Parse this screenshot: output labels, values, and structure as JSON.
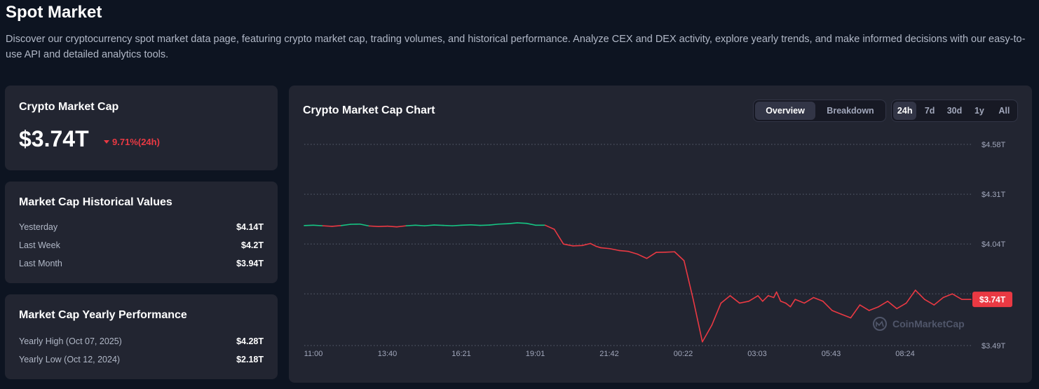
{
  "page": {
    "title": "Spot Market",
    "description": "Discover our cryptocurrency spot market data page, featuring crypto market cap, trading volumes, and historical performance. Analyze CEX and DEX activity, explore yearly trends, and make informed decisions with our easy-to-use API and detailed analytics tools."
  },
  "market_cap": {
    "title": "Crypto Market Cap",
    "value": "$3.74T",
    "change": "9.71%(24h)",
    "change_direction": "down"
  },
  "historical": {
    "title": "Market Cap Historical Values",
    "rows": [
      {
        "label": "Yesterday",
        "value": "$4.14T"
      },
      {
        "label": "Last Week",
        "value": "$4.2T"
      },
      {
        "label": "Last Month",
        "value": "$3.94T"
      }
    ]
  },
  "yearly": {
    "title": "Market Cap Yearly Performance",
    "rows": [
      {
        "label": "Yearly High (Oct 07, 2025)",
        "value": "$4.28T"
      },
      {
        "label": "Yearly Low (Oct 12, 2024)",
        "value": "$2.18T"
      }
    ]
  },
  "chart": {
    "title": "Crypto Market Cap Chart",
    "view_tabs": [
      {
        "label": "Overview",
        "active": true
      },
      {
        "label": "Breakdown",
        "active": false
      }
    ],
    "range_tabs": [
      {
        "label": "24h",
        "active": true
      },
      {
        "label": "7d",
        "active": false
      },
      {
        "label": "30d",
        "active": false
      },
      {
        "label": "1y",
        "active": false
      },
      {
        "label": "All",
        "active": false
      }
    ],
    "current_label": "$3.74T",
    "watermark": "CoinMarketCap",
    "colors": {
      "up": "#16c784",
      "down": "#ea3943",
      "grid": "#5a6070",
      "axis_text": "#a1a7bb"
    }
  },
  "chart_data": {
    "type": "line",
    "x_tick_labels": [
      "11:00",
      "13:40",
      "16:21",
      "19:01",
      "21:42",
      "00:22",
      "03:03",
      "05:43",
      "08:24"
    ],
    "y_tick_labels": [
      "$4.58T",
      "$4.31T",
      "$4.04T",
      "$3.49T"
    ],
    "ylim": [
      3.49,
      4.58
    ],
    "y_ticks": [
      4.58,
      4.31,
      4.04,
      3.77,
      3.49
    ],
    "unit": "T",
    "baseline": 4.14,
    "grid": true,
    "series": [
      {
        "x": [
          0,
          0.33,
          0.67,
          1.0,
          1.33,
          1.67,
          2.0,
          2.33,
          2.67,
          3.0,
          3.33,
          3.67,
          4.0,
          4.33,
          4.67,
          5.0,
          5.33,
          5.67,
          6.0,
          6.33,
          6.67,
          7.0,
          7.33,
          7.67,
          8.0,
          8.33,
          8.67,
          9.0,
          9.33,
          9.67,
          10.0,
          10.3,
          10.5,
          10.67,
          11.0,
          11.33,
          11.67,
          12.0,
          12.33,
          12.67,
          13.0,
          13.33,
          13.67,
          14.0,
          14.33,
          14.67,
          15.0,
          15.33,
          15.67,
          16.0,
          16.33,
          16.5,
          16.7,
          16.9,
          17.0,
          17.15,
          17.33,
          17.5,
          17.67,
          18.0,
          18.33,
          18.67,
          19.0,
          19.33,
          19.67,
          20.0,
          20.33,
          20.67,
          21.0,
          21.33,
          21.67,
          22.0,
          22.33,
          22.67,
          23.0,
          23.33,
          23.67,
          24.0
        ],
        "y": [
          4.14,
          4.142,
          4.139,
          4.136,
          4.14,
          4.147,
          4.148,
          4.138,
          4.135,
          4.137,
          4.133,
          4.139,
          4.142,
          4.139,
          4.143,
          4.141,
          4.139,
          4.142,
          4.144,
          4.141,
          4.143,
          4.148,
          4.15,
          4.155,
          4.152,
          4.142,
          4.142,
          4.12,
          4.04,
          4.03,
          4.032,
          4.043,
          4.028,
          4.02,
          4.015,
          4.005,
          4.0,
          3.985,
          3.962,
          3.995,
          3.996,
          3.998,
          3.95,
          3.74,
          3.51,
          3.6,
          3.72,
          3.76,
          3.72,
          3.73,
          3.76,
          3.73,
          3.76,
          3.75,
          3.78,
          3.73,
          3.72,
          3.7,
          3.74,
          3.72,
          3.75,
          3.73,
          3.68,
          3.66,
          3.64,
          3.71,
          3.68,
          3.7,
          3.73,
          3.69,
          3.72,
          3.79,
          3.74,
          3.71,
          3.75,
          3.77,
          3.74,
          3.74
        ]
      }
    ]
  }
}
